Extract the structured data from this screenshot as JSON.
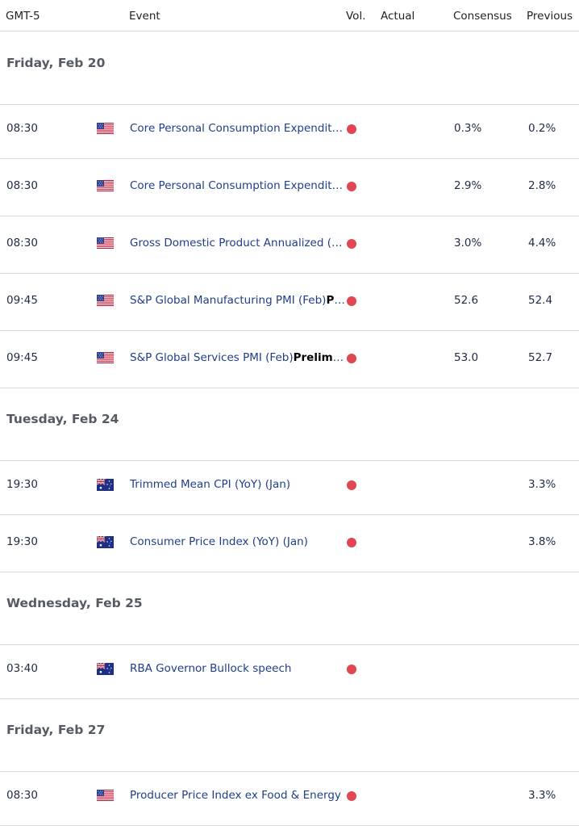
{
  "header": {
    "timezone": "GMT-5",
    "event": "Event",
    "vol": "Vol.",
    "actual": "Actual",
    "consensus": "Consensus",
    "previous": "Previous"
  },
  "colors": {
    "volatility_high": "#e14750",
    "event_link": "#1f3d8a"
  },
  "days": [
    {
      "label": "Friday, Feb 20",
      "events": [
        {
          "time": "08:30",
          "country": "us-flag-icon",
          "event": "Core Personal Consumption Expenditures",
          "event_bold": "",
          "actual": "",
          "consensus": "0.3%",
          "previous": "0.2%"
        },
        {
          "time": "08:30",
          "country": "us-flag-icon",
          "event": "Core Personal Consumption Expenditures",
          "event_bold": "",
          "actual": "",
          "consensus": "2.9%",
          "previous": "2.8%"
        },
        {
          "time": "08:30",
          "country": "us-flag-icon",
          "event": "Gross Domestic Product Annualized (QoQ)",
          "event_bold": "",
          "actual": "",
          "consensus": "3.0%",
          "previous": "4.4%"
        },
        {
          "time": "09:45",
          "country": "us-flag-icon",
          "event": "S&P Global Manufacturing PMI (Feb)",
          "event_bold": "Preliminary",
          "actual": "",
          "consensus": "52.6",
          "previous": "52.4"
        },
        {
          "time": "09:45",
          "country": "us-flag-icon",
          "event": "S&P Global Services PMI (Feb)",
          "event_bold": "Preliminary",
          "actual": "",
          "consensus": "53.0",
          "previous": "52.7"
        }
      ]
    },
    {
      "label": "Tuesday, Feb 24",
      "events": [
        {
          "time": "19:30",
          "country": "au-flag-icon",
          "event": "Trimmed Mean CPI (YoY) (Jan)",
          "event_bold": "",
          "actual": "",
          "consensus": "",
          "previous": "3.3%"
        },
        {
          "time": "19:30",
          "country": "au-flag-icon",
          "event": "Consumer Price Index (YoY) (Jan)",
          "event_bold": "",
          "actual": "",
          "consensus": "",
          "previous": "3.8%"
        }
      ]
    },
    {
      "label": "Wednesday, Feb 25",
      "events": [
        {
          "time": "03:40",
          "country": "au-flag-icon",
          "event": "RBA Governor Bullock speech",
          "event_bold": "",
          "actual": "",
          "consensus": "",
          "previous": ""
        }
      ]
    },
    {
      "label": "Friday, Feb 27",
      "events": [
        {
          "time": "08:30",
          "country": "us-flag-icon",
          "event": "Producer Price Index ex Food & Energy",
          "event_bold": "",
          "actual": "",
          "consensus": "",
          "previous": "3.3%"
        }
      ]
    }
  ]
}
